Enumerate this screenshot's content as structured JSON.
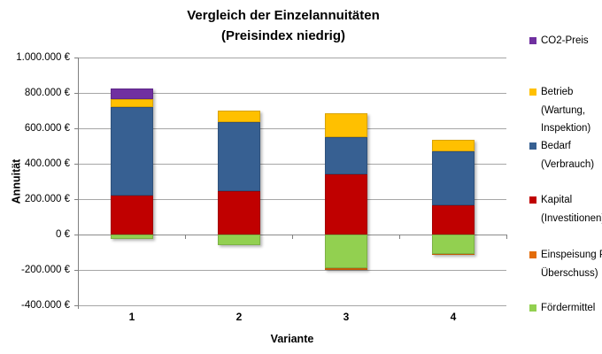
{
  "title": {
    "line1": "Vergleich der Einzelannuitäten",
    "line2": "(Preisindex niedrig)"
  },
  "axes": {
    "y_label": "Annuität",
    "x_label": "Variante",
    "y_ticks": [
      "1.000.000 €",
      "800.000 €",
      "600.000 €",
      "400.000 €",
      "200.000 €",
      "0 €",
      "-200.000 €",
      "-400.000 €"
    ],
    "x_ticks": [
      "1",
      "2",
      "3",
      "4"
    ]
  },
  "chart_data": {
    "type": "bar",
    "stacked": true,
    "title": "Vergleich der Einzelannuitäten (Preisindex niedrig)",
    "xlabel": "Variante",
    "ylabel": "Annuität",
    "categories": [
      "1",
      "2",
      "3",
      "4"
    ],
    "ylim": [
      -400000,
      1000000
    ],
    "y_tick_step": 200000,
    "grid": true,
    "legend_position": "right",
    "currency": "€",
    "series": [
      {
        "name": "CO2-Preis",
        "color": "#7030A0",
        "values": [
          60000,
          0,
          0,
          0
        ]
      },
      {
        "name": "Betrieb (Wartung, Inspektion)",
        "color": "#FFC000",
        "values": [
          45000,
          65000,
          135000,
          65000
        ]
      },
      {
        "name": "Bedarf (Verbrauch)",
        "color": "#376092",
        "values": [
          500000,
          390000,
          210000,
          305000
        ]
      },
      {
        "name": "Kapital (Investitionen)",
        "color": "#C00000",
        "values": [
          220000,
          245000,
          340000,
          165000
        ]
      },
      {
        "name": "Einspeisung PV Überschuss",
        "color": "#E36C09",
        "values": [
          0,
          0,
          -10000,
          -5000
        ]
      },
      {
        "name": "Fördermittel",
        "color": "#92D050",
        "values": [
          -25000,
          -60000,
          -190000,
          -110000
        ]
      }
    ]
  },
  "legend": {
    "entries": [
      {
        "key": "co2-preis",
        "lines": [
          "CO2-Preis"
        ],
        "color": "#7030A0"
      },
      {
        "key": "betrieb",
        "lines": [
          "Betrieb",
          "(Wartung,",
          "Inspektion)"
        ],
        "color": "#FFC000"
      },
      {
        "key": "bedarf",
        "lines": [
          "Bedarf",
          "(Verbrauch)"
        ],
        "color": "#376092"
      },
      {
        "key": "kapital",
        "lines": [
          "Kapital",
          "(Investitionen)"
        ],
        "color": "#C00000"
      },
      {
        "key": "einspeisung",
        "lines": [
          "Einspeisung PV",
          "Überschuss)"
        ],
        "color": "#E36C09"
      },
      {
        "key": "foerdermittel",
        "lines": [
          "Fördermittel"
        ],
        "color": "#92D050"
      }
    ]
  },
  "colors": {
    "gridline": "#A6A6A6",
    "axis": "#808080",
    "background": "#FFFFFF"
  }
}
